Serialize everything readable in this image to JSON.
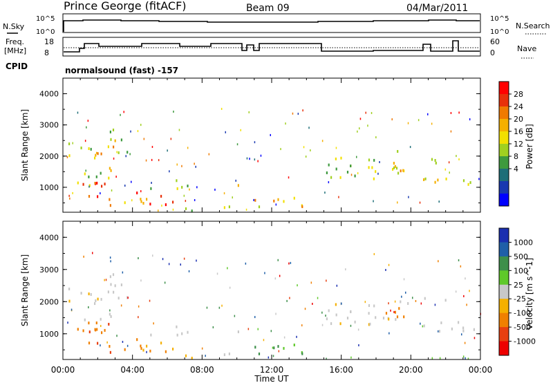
{
  "header": {
    "station": "Prince George (fitACF)",
    "beam": "Beam 09",
    "date": "04/Mar/2011"
  },
  "status_panels": {
    "nsky": {
      "label": "N.Sky",
      "ticks": [
        "10^5",
        "10^0"
      ]
    },
    "nsearch": {
      "label": "N.Search",
      "ticks": [
        "10^5",
        "10^0"
      ]
    },
    "freq": {
      "label_line1": "Freq.",
      "label_line2": "[MHz]",
      "ticks": [
        "18",
        "8"
      ]
    },
    "nave": {
      "label": "Nave",
      "ticks": [
        "60",
        "0"
      ]
    },
    "cpid": {
      "label": "CPID",
      "text": "normalsound (fast)  -157"
    }
  },
  "chart_data": [
    {
      "type": "heatmap",
      "name": "power",
      "ylabel": "Slant Range [km]",
      "xlabel": "",
      "xlim": [
        0,
        24
      ],
      "ylim": [
        200,
        4500
      ],
      "yticks": [
        "4000",
        "3000",
        "2000",
        "1000"
      ],
      "xticks": [
        "00:00",
        "04:00",
        "08:00",
        "12:00",
        "16:00",
        "20:00",
        "00:00"
      ],
      "colorbar": {
        "label": "Power [dB]",
        "ticks": [
          "28",
          "24",
          "20",
          "16",
          "12",
          "8",
          "4"
        ],
        "colors": [
          "#ff0000",
          "#e8300a",
          "#f07a00",
          "#f5b000",
          "#f2e000",
          "#a0d020",
          "#3e9a3e",
          "#1e6e78",
          "#1838b0",
          "#0000ff"
        ]
      }
    },
    {
      "type": "heatmap",
      "name": "velocity",
      "ylabel": "Slant Range [km]",
      "xlabel": "Time UT",
      "xlim": [
        0,
        24
      ],
      "ylim": [
        200,
        4500
      ],
      "yticks": [
        "4000",
        "3000",
        "2000",
        "1000"
      ],
      "xticks": [
        "00:00",
        "04:00",
        "08:00",
        "12:00",
        "16:00",
        "20:00",
        "00:00"
      ],
      "colorbar": {
        "label": "Velocity [m s^-1]",
        "ticks": [
          "1000",
          "500",
          "100",
          "25",
          "-25",
          "-100",
          "-500",
          "-1000"
        ],
        "colors": [
          "#1a2fb0",
          "#1f5fa8",
          "#3d8f4a",
          "#5fc92a",
          "#c8c8c8",
          "#f5b000",
          "#f08000",
          "#e84010",
          "#ee0000"
        ]
      }
    }
  ]
}
